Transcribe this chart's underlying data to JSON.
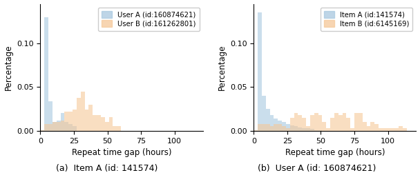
{
  "fig_width": 6.08,
  "fig_height": 2.54,
  "dpi": 100,
  "color_blue": "#A8C8E0",
  "color_orange": "#F5C898",
  "xlim": [
    0,
    121
  ],
  "ylim": [
    0,
    0.145
  ],
  "yticks": [
    0.0,
    0.05,
    0.1
  ],
  "xticks": [
    0,
    25,
    50,
    75,
    100
  ],
  "xlabel": "Repeat time gap (hours)",
  "ylabel": "Percentage",
  "subplot_a_caption": "(a)  Item A (id: 141574)",
  "subplot_b_caption": "(b)  User A (id: 160874621)",
  "subplot_a_legend1": "User A (id:160874621)",
  "subplot_a_legend2": "User B (id:161262801)",
  "subplot_b_legend1": "Item A (id:141574)",
  "subplot_b_legend2": "Item B (id:6145169)",
  "bin_width": 3,
  "subplot_a_blue_vals": [
    0.001,
    0.13,
    0.034,
    0.01,
    0.012,
    0.02,
    0.01,
    0.008,
    0.005,
    0.0,
    0.0,
    0.0,
    0.0,
    0.0,
    0.0,
    0.0,
    0.0,
    0.0,
    0.0,
    0.0,
    0.0,
    0.0,
    0.0,
    0.0,
    0.0,
    0.0,
    0.0,
    0.0,
    0.0,
    0.0,
    0.0,
    0.0,
    0.0,
    0.0,
    0.0,
    0.0,
    0.0,
    0.0,
    0.0,
    0.0,
    0.0
  ],
  "subplot_a_orange_vals": [
    0.001,
    0.008,
    0.008,
    0.01,
    0.01,
    0.012,
    0.022,
    0.022,
    0.024,
    0.038,
    0.045,
    0.024,
    0.03,
    0.018,
    0.018,
    0.016,
    0.01,
    0.016,
    0.005,
    0.005,
    0.0,
    0.0,
    0.0,
    0.0,
    0.0,
    0.0,
    0.0,
    0.0,
    0.0,
    0.0,
    0.0,
    0.0,
    0.0,
    0.0,
    0.0,
    0.0,
    0.0,
    0.0,
    0.0,
    0.0,
    0.0
  ],
  "subplot_b_blue_vals": [
    0.001,
    0.135,
    0.04,
    0.025,
    0.018,
    0.014,
    0.012,
    0.01,
    0.008,
    0.006,
    0.005,
    0.004,
    0.003,
    0.003,
    0.002,
    0.001,
    0.001,
    0.0,
    0.0,
    0.0,
    0.0,
    0.0,
    0.0,
    0.0,
    0.0,
    0.0,
    0.0,
    0.0,
    0.0,
    0.0,
    0.0,
    0.0,
    0.0,
    0.0,
    0.0,
    0.0,
    0.0,
    0.0,
    0.0,
    0.0,
    0.0
  ],
  "subplot_b_orange_vals": [
    0.001,
    0.008,
    0.008,
    0.008,
    0.005,
    0.008,
    0.008,
    0.005,
    0.003,
    0.015,
    0.02,
    0.018,
    0.015,
    0.005,
    0.018,
    0.02,
    0.018,
    0.01,
    0.003,
    0.015,
    0.02,
    0.018,
    0.02,
    0.015,
    0.003,
    0.02,
    0.02,
    0.01,
    0.005,
    0.01,
    0.008,
    0.003,
    0.003,
    0.003,
    0.003,
    0.003,
    0.005,
    0.003,
    0.0,
    0.0,
    0.0
  ]
}
